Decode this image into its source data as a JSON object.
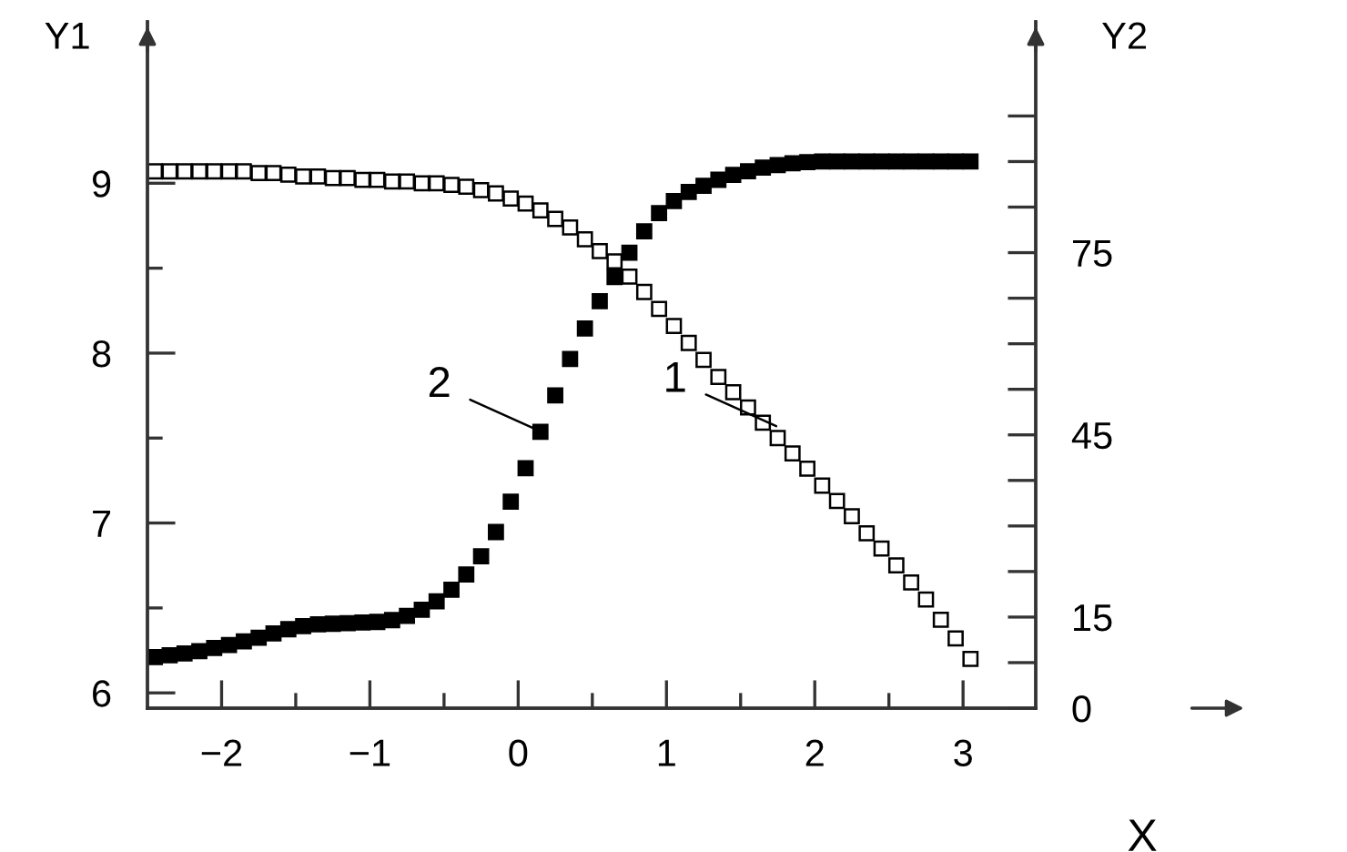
{
  "chart_data": {
    "type": "scatter",
    "xlabel": "X",
    "ylabel": "Y1",
    "y2label": "Y2",
    "x": [
      -2.45,
      -2.35,
      -2.25,
      -2.15,
      -2.05,
      -1.95,
      -1.85,
      -1.75,
      -1.65,
      -1.55,
      -1.45,
      -1.35,
      -1.25,
      -1.15,
      -1.05,
      -0.95,
      -0.85,
      -0.75,
      -0.65,
      -0.55,
      -0.45,
      -0.35,
      -0.25,
      -0.15,
      -0.05,
      0.05,
      0.15,
      0.25,
      0.35,
      0.45,
      0.55,
      0.65,
      0.75,
      0.85,
      0.95,
      1.05,
      1.15,
      1.25,
      1.35,
      1.45,
      1.55,
      1.65,
      1.75,
      1.85,
      1.95,
      2.05,
      2.15,
      2.25,
      2.35,
      2.45,
      2.55,
      2.65,
      2.75,
      2.85,
      2.95,
      3.05
    ],
    "series": [
      {
        "color": "#ffffff",
        "marker": "square",
        "values": [
          9.07,
          9.07,
          9.07,
          9.07,
          9.07,
          9.07,
          9.07,
          9.06,
          9.06,
          9.05,
          9.04,
          9.04,
          9.03,
          9.03,
          9.02,
          9.02,
          9.01,
          9.01,
          9.0,
          9.0,
          8.99,
          8.98,
          8.96,
          8.94,
          8.91,
          8.88,
          8.84,
          8.79,
          8.74,
          8.67,
          8.6,
          8.54,
          8.45,
          8.36,
          8.26,
          8.16,
          8.06,
          7.96,
          7.86,
          7.77,
          7.68,
          7.59,
          7.5,
          7.41,
          7.32,
          7.22,
          7.13,
          7.04,
          6.94,
          6.85,
          6.75,
          6.65,
          6.55,
          6.43,
          6.32,
          6.2
        ]
      },
      {
        "color": "#000000",
        "marker": "square",
        "axis": "y2",
        "values": [
          8.4,
          8.7,
          9.0,
          9.4,
          9.9,
          10.4,
          11.0,
          11.6,
          12.3,
          13.0,
          13.5,
          13.8,
          13.9,
          14.0,
          14.1,
          14.2,
          14.5,
          15.2,
          16.2,
          17.6,
          19.5,
          22.0,
          25.0,
          29.0,
          34.0,
          39.5,
          45.5,
          51.5,
          57.5,
          62.5,
          67.0,
          71.0,
          75.0,
          78.5,
          81.5,
          83.5,
          85.0,
          86.0,
          87.0,
          87.8,
          88.4,
          89.0,
          89.4,
          89.7,
          89.9,
          90,
          90,
          90,
          90,
          90,
          90,
          90,
          90,
          90,
          90,
          90
        ]
      }
    ],
    "annotations": [
      {
        "text": "1",
        "x": 1.74,
        "y": 7.57
      },
      {
        "text": "2",
        "x": 0.15,
        "y": 7.54
      }
    ],
    "xlim": [
      -2.5,
      3.49
    ],
    "ylim": [
      5.91,
      9.95
    ],
    "y2lim": [
      0,
      113
    ],
    "xticks": [
      -2,
      {
        "value": -1.5,
        "label": null
      },
      -1,
      {
        "value": -0.5,
        "label": null
      },
      0,
      {
        "value": 0.5,
        "label": null
      },
      1,
      {
        "value": 1.5,
        "label": null
      },
      2,
      {
        "value": 2.5,
        "label": null
      },
      3
    ],
    "yticks": [
      6,
      {
        "value": 6.5,
        "label": null
      },
      7,
      {
        "value": 7.5,
        "label": null
      },
      8,
      {
        "value": 8.5,
        "label": null
      },
      9
    ],
    "y2ticks": [
      0,
      {
        "value": 7.5,
        "label": null
      },
      15,
      {
        "value": 22.5,
        "label": null
      },
      {
        "value": 30,
        "label": null
      },
      {
        "value": 37.5,
        "label": null
      },
      45,
      {
        "value": 52.5,
        "label": null
      },
      {
        "value": 60,
        "label": null
      },
      {
        "value": 67.5,
        "label": null
      },
      75,
      {
        "value": 82.5,
        "label": null
      },
      {
        "value": 90,
        "label": null
      },
      {
        "value": 97.5,
        "label": null
      }
    ],
    "grid": false,
    "legend": false
  }
}
